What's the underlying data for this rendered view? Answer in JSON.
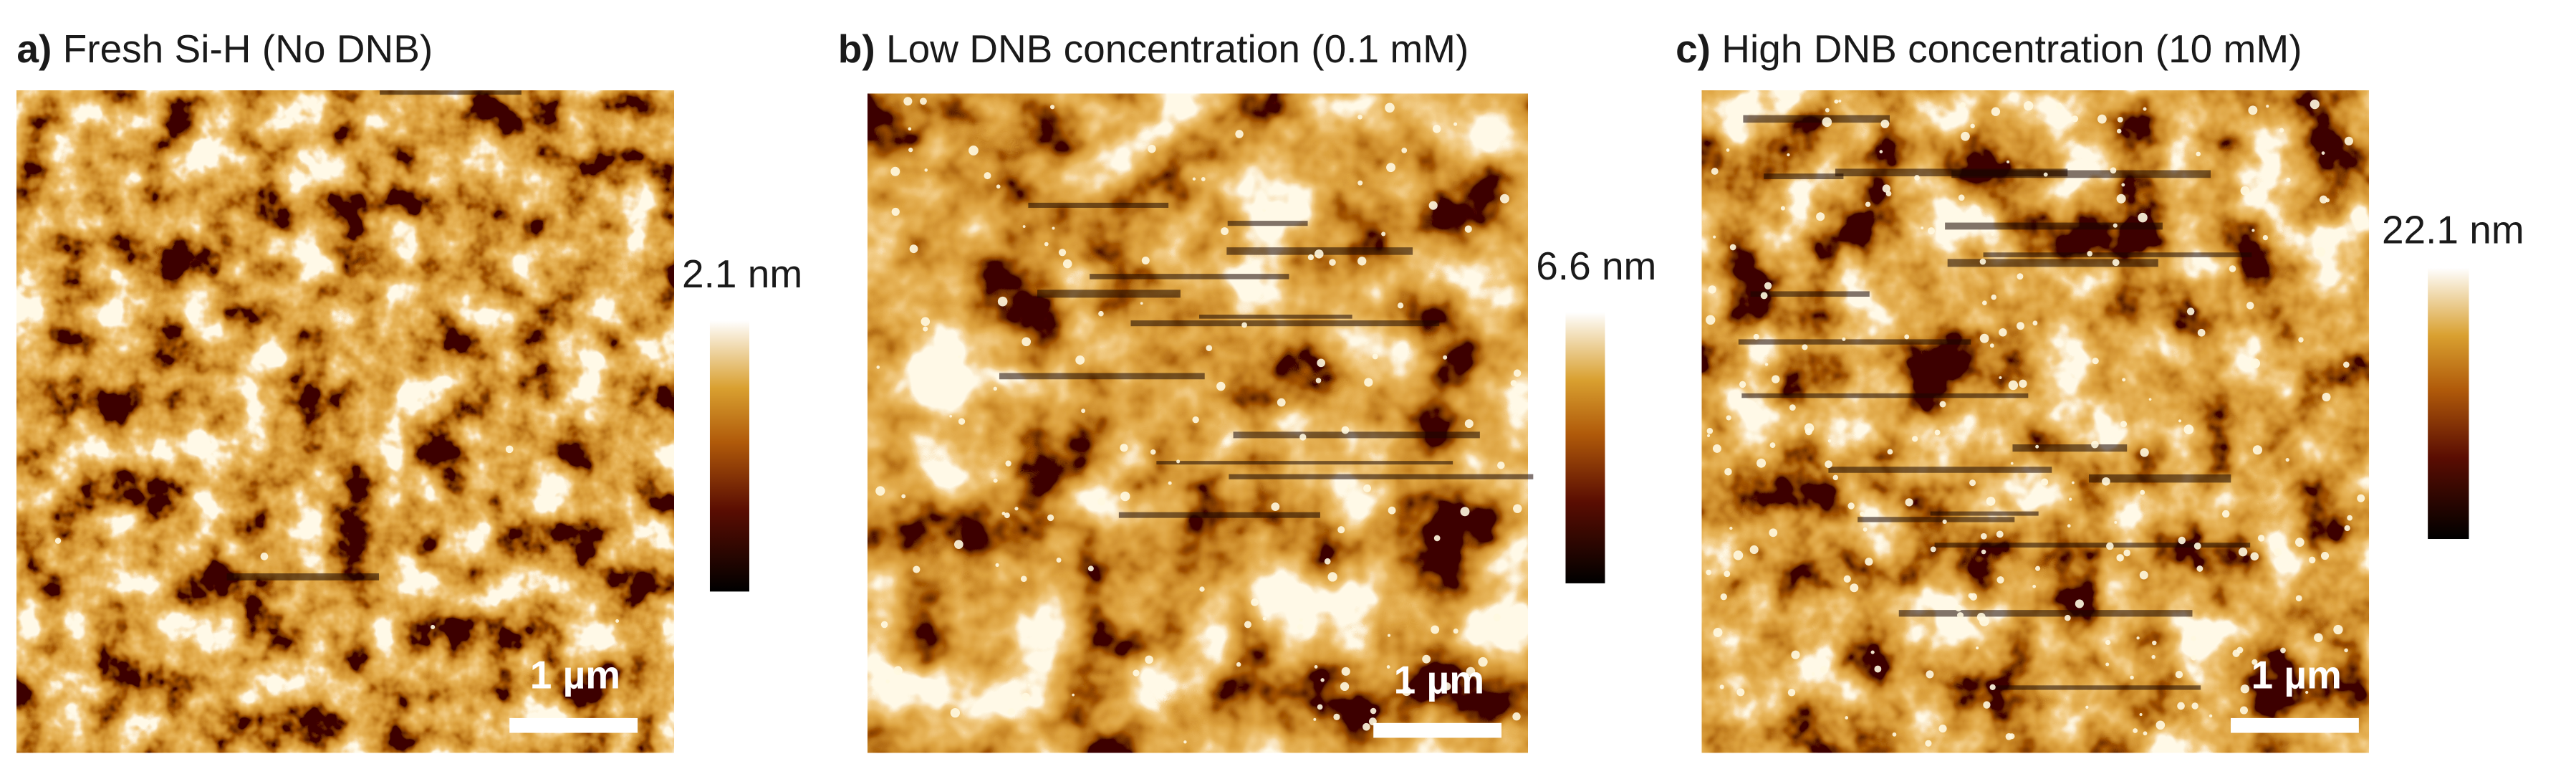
{
  "panels": [
    {
      "letter": "a)",
      "title": "Fresh Si-H (No DNB)",
      "colorbar_label": "2.1 nm",
      "scalebar_label": "1 µm"
    },
    {
      "letter": "b)",
      "title": "Low DNB concentration (0.1 mM)",
      "colorbar_label": "6.6 nm",
      "scalebar_label": "1 µm"
    },
    {
      "letter": "c)",
      "title": "High DNB concentration (10 mM)",
      "colorbar_label": "22.1 nm",
      "scalebar_label": "1 µm"
    }
  ]
}
